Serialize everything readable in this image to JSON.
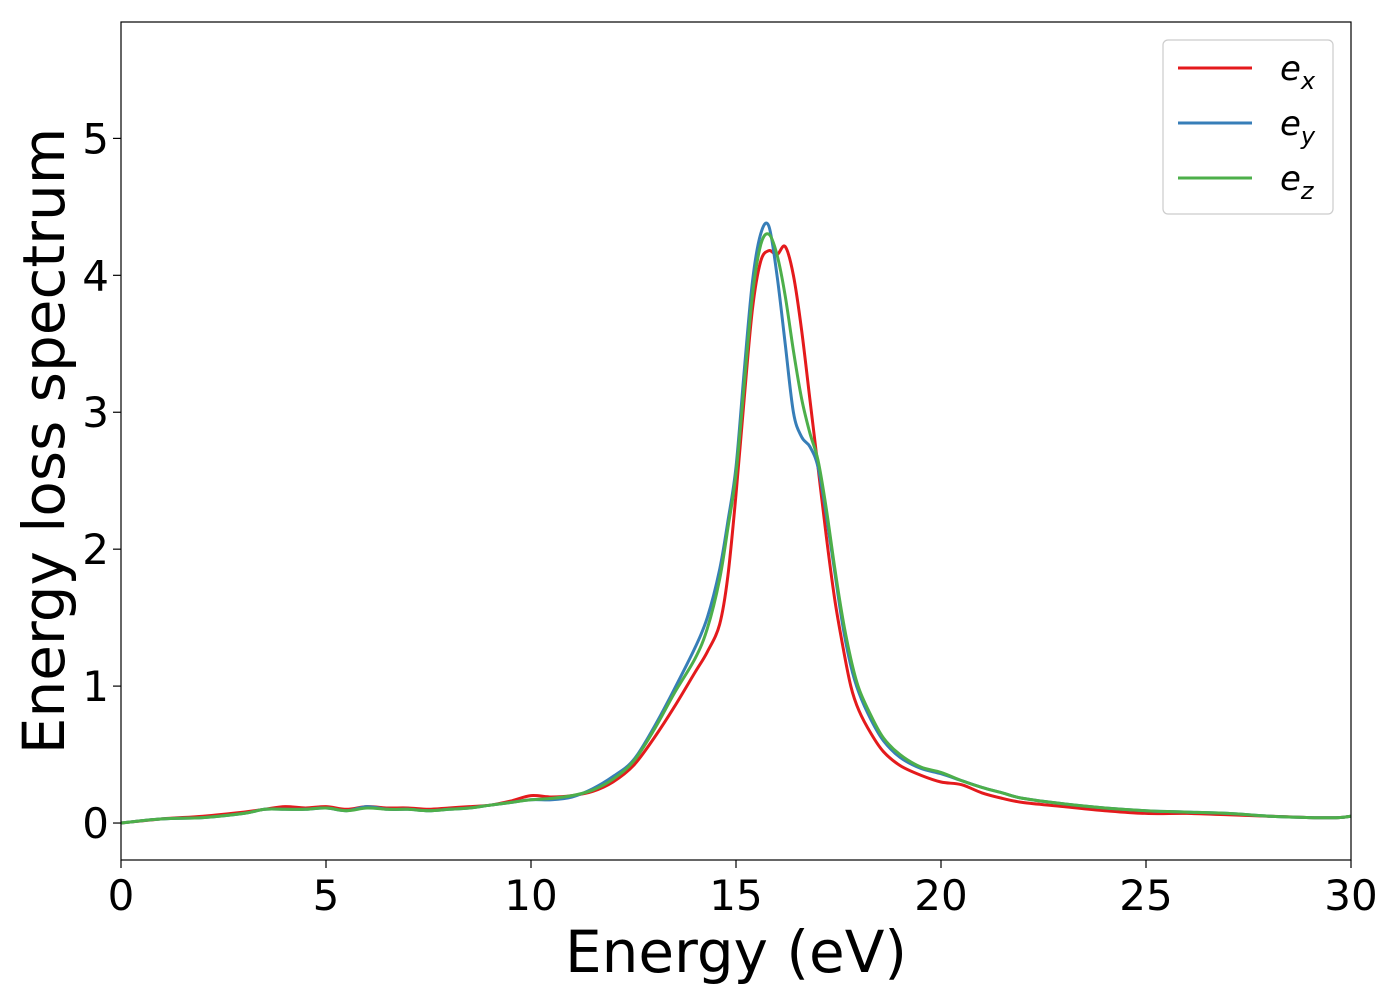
{
  "chart_data": {
    "type": "line",
    "xlabel": "Energy (eV)",
    "ylabel": "Energy loss spectrum",
    "xlim": [
      0,
      30
    ],
    "ylim": [
      -0.27,
      5.85
    ],
    "xticks": [
      0,
      5,
      10,
      15,
      20,
      25,
      30
    ],
    "yticks": [
      0,
      1,
      2,
      3,
      4,
      5
    ],
    "grid": false,
    "legend_position": "top-right",
    "series": [
      {
        "name": "e_x",
        "label_base": "e",
        "label_sub": "x",
        "color": "#e41a1c",
        "x": [
          0,
          1,
          2,
          3,
          3.5,
          4,
          4.5,
          5,
          5.5,
          6,
          6.5,
          7,
          7.5,
          8,
          8.5,
          9,
          9.5,
          10,
          10.5,
          11,
          11.5,
          12,
          12.5,
          13,
          13.5,
          14,
          14.3,
          14.6,
          14.8,
          15,
          15.2,
          15.4,
          15.6,
          15.8,
          16,
          16.2,
          16.4,
          16.6,
          16.8,
          17,
          17.2,
          17.4,
          17.6,
          17.8,
          18,
          18.3,
          18.6,
          19,
          19.5,
          20,
          20.5,
          21,
          21.5,
          22,
          23,
          24,
          25,
          26,
          27,
          28,
          29,
          29.7,
          30
        ],
        "y": [
          0,
          0.03,
          0.05,
          0.08,
          0.1,
          0.12,
          0.11,
          0.12,
          0.1,
          0.12,
          0.11,
          0.11,
          0.1,
          0.11,
          0.12,
          0.13,
          0.16,
          0.2,
          0.19,
          0.2,
          0.23,
          0.3,
          0.42,
          0.62,
          0.85,
          1.1,
          1.25,
          1.45,
          1.8,
          2.4,
          3.1,
          3.75,
          4.1,
          4.18,
          4.15,
          4.21,
          4.0,
          3.6,
          3.1,
          2.6,
          2.1,
          1.65,
          1.3,
          1.0,
          0.82,
          0.65,
          0.52,
          0.42,
          0.35,
          0.3,
          0.28,
          0.22,
          0.18,
          0.15,
          0.12,
          0.09,
          0.07,
          0.07,
          0.06,
          0.05,
          0.04,
          0.04,
          0.05
        ]
      },
      {
        "name": "e_y",
        "label_base": "e",
        "label_sub": "y",
        "color": "#377eb8",
        "x": [
          0,
          1,
          2,
          3,
          3.5,
          4,
          4.5,
          5,
          5.5,
          6,
          6.5,
          7,
          7.5,
          8,
          8.5,
          9,
          9.5,
          10,
          10.5,
          11,
          11.5,
          12,
          12.5,
          13,
          13.5,
          14,
          14.3,
          14.6,
          14.8,
          15,
          15.2,
          15.4,
          15.6,
          15.8,
          16,
          16.2,
          16.4,
          16.6,
          16.8,
          17,
          17.2,
          17.4,
          17.6,
          17.8,
          18,
          18.3,
          18.6,
          19,
          19.5,
          20,
          20.5,
          21,
          21.5,
          22,
          23,
          24,
          25,
          26,
          27,
          28,
          29,
          29.7,
          30
        ],
        "y": [
          0,
          0.03,
          0.04,
          0.07,
          0.1,
          0.1,
          0.1,
          0.11,
          0.09,
          0.12,
          0.1,
          0.1,
          0.09,
          0.1,
          0.11,
          0.13,
          0.15,
          0.17,
          0.17,
          0.19,
          0.25,
          0.34,
          0.46,
          0.7,
          0.98,
          1.28,
          1.5,
          1.85,
          2.2,
          2.6,
          3.3,
          3.95,
          4.3,
          4.36,
          4.0,
          3.5,
          3.0,
          2.82,
          2.75,
          2.6,
          2.25,
          1.85,
          1.45,
          1.15,
          0.95,
          0.75,
          0.6,
          0.48,
          0.4,
          0.36,
          0.31,
          0.26,
          0.22,
          0.18,
          0.14,
          0.11,
          0.09,
          0.08,
          0.07,
          0.05,
          0.04,
          0.04,
          0.05
        ]
      },
      {
        "name": "e_z",
        "label_base": "e",
        "label_sub": "z",
        "color": "#4daf4a",
        "x": [
          0,
          1,
          2,
          3,
          3.5,
          4,
          4.5,
          5,
          5.5,
          6,
          6.5,
          7,
          7.5,
          8,
          8.5,
          9,
          9.5,
          10,
          10.5,
          11,
          11.5,
          12,
          12.5,
          13,
          13.5,
          14,
          14.3,
          14.6,
          14.8,
          15,
          15.2,
          15.4,
          15.6,
          15.8,
          16,
          16.2,
          16.4,
          16.6,
          16.8,
          17,
          17.2,
          17.4,
          17.6,
          17.8,
          18,
          18.3,
          18.6,
          19,
          19.5,
          20,
          20.5,
          21,
          21.5,
          22,
          23,
          24,
          25,
          26,
          27,
          28,
          29,
          29.7,
          30
        ],
        "y": [
          0,
          0.03,
          0.04,
          0.07,
          0.1,
          0.1,
          0.1,
          0.11,
          0.09,
          0.11,
          0.1,
          0.1,
          0.09,
          0.1,
          0.11,
          0.13,
          0.15,
          0.17,
          0.18,
          0.2,
          0.24,
          0.32,
          0.45,
          0.68,
          0.95,
          1.2,
          1.42,
          1.78,
          2.15,
          2.55,
          3.2,
          3.85,
          4.22,
          4.3,
          4.15,
          3.85,
          3.45,
          3.1,
          2.85,
          2.65,
          2.3,
          1.88,
          1.5,
          1.2,
          0.98,
          0.78,
          0.62,
          0.5,
          0.41,
          0.37,
          0.31,
          0.26,
          0.22,
          0.18,
          0.14,
          0.11,
          0.09,
          0.08,
          0.07,
          0.05,
          0.04,
          0.04,
          0.05
        ]
      }
    ]
  }
}
